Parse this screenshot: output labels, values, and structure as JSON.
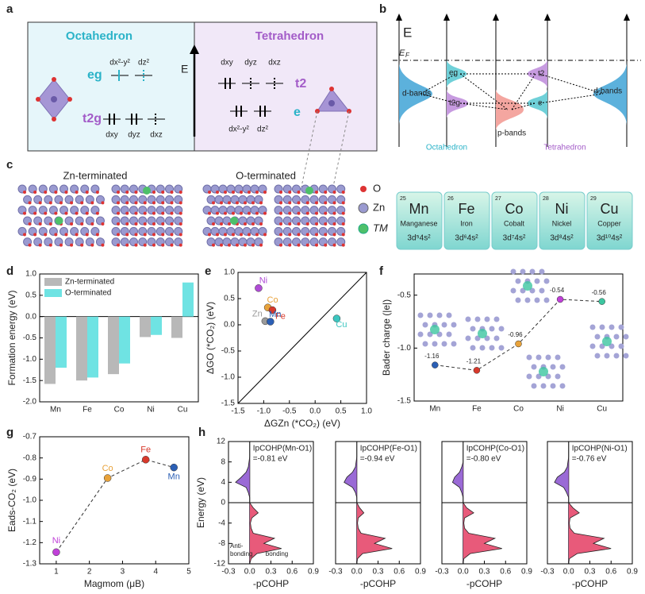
{
  "panel_labels": [
    "a",
    "b",
    "c",
    "d",
    "e",
    "f",
    "g",
    "h"
  ],
  "a": {
    "oct_title": "Octahedron",
    "tet_title": "Tetrahedron",
    "energy": "E",
    "oct_eg": "eg",
    "oct_t2g": "t2g",
    "tet_t2": "t2",
    "tet_e": "e",
    "oct_eg_orbitals": [
      "dx²-y²",
      "dz²"
    ],
    "oct_t2g_orbitals": [
      "dxy",
      "dyz",
      "dxz"
    ],
    "tet_t2_orbitals": [
      "dxy",
      "dyz",
      "dxz"
    ],
    "tet_e_orbitals": [
      "dx²-y²",
      "dz²"
    ]
  },
  "b": {
    "energy": "E",
    "fermi": "E",
    "fermi_sub": "F",
    "d_bands_left": "d-bands",
    "eg": "eg",
    "t2g": "t2g",
    "p_bands": "p-bands",
    "t2": "t2",
    "e": "e",
    "d_bands_right": "d-bands",
    "octahedron": "Octahedron",
    "tetrahedron": "Tetrahedron"
  },
  "c": {
    "zn_terminated": "Zn-terminated",
    "o_terminated": "O-terminated",
    "legend": [
      "O",
      "Zn",
      "TM"
    ],
    "elements": [
      {
        "number": "25",
        "symbol": "Mn",
        "name": "Manganese",
        "config": "3d⁵4s²"
      },
      {
        "number": "26",
        "symbol": "Fe",
        "name": "Iron",
        "config": "3d⁶4s²"
      },
      {
        "number": "27",
        "symbol": "Co",
        "name": "Cobalt",
        "config": "3d⁷4s²"
      },
      {
        "number": "28",
        "symbol": "Ni",
        "name": "Nickel",
        "config": "3d⁸4s²"
      },
      {
        "number": "29",
        "symbol": "Cu",
        "name": "Copper",
        "config": "3d¹⁰4s²"
      }
    ]
  },
  "chart_data": [
    {
      "type": "bar",
      "y_label": "Formation energy (eV)",
      "legend": "upper left",
      "categories": [
        "Mn",
        "Fe",
        "Co",
        "Ni",
        "Cu"
      ],
      "series": [
        {
          "name": "Zn-terminated",
          "color": "#b8b8b8",
          "values": [
            -1.58,
            -1.5,
            -1.35,
            -0.48,
            -0.5
          ]
        },
        {
          "name": "O-terminated",
          "color": "#6fe3e3",
          "values": [
            -1.2,
            -1.43,
            -1.1,
            -0.43,
            0.8
          ]
        }
      ],
      "ylim": [
        -2,
        1
      ],
      "yticks": [
        {
          "value": -2,
          "label": "-2.0"
        },
        -1.5,
        {
          "value": -1,
          "label": "-1.0"
        },
        -0.5,
        {
          "value": 0,
          "label": "0.0"
        },
        0.5,
        {
          "value": 1,
          "label": "1.0"
        }
      ]
    },
    {
      "type": "scatter",
      "x_label": "ΔGZn (*CO₂) (eV)",
      "y_label": "ΔGO (*CO₂) (eV)",
      "labels": [
        "Ni",
        "Co",
        "Fe",
        "Zn",
        "Mn",
        "Cu"
      ],
      "colors": [
        "#b04cd6",
        "#e8a23a",
        "#d8392b",
        "#9a9a9a",
        "#2b5fb5",
        "#3cc6c0"
      ],
      "x": [
        -1.1,
        -0.92,
        -0.83,
        -0.97,
        -0.87,
        0.42
      ],
      "y": [
        0.7,
        0.33,
        0.28,
        0.07,
        0.06,
        0.12
      ],
      "xlim": [
        -1.5,
        1
      ],
      "ylim": [
        -1.5,
        1
      ],
      "xticks": [
        -1.5,
        {
          "value": -1,
          "label": "-1.0"
        },
        -0.5,
        {
          "value": 0,
          "label": "0.0"
        },
        0.5,
        {
          "value": 1,
          "label": "1.0"
        }
      ],
      "yticks": [
        -1.5,
        {
          "value": -1,
          "label": "-1.0"
        },
        -0.5,
        {
          "value": 0,
          "label": "0.0"
        },
        0.5,
        {
          "value": 1,
          "label": "1.0"
        }
      ]
    },
    {
      "type": "line",
      "y_label": "Bader charge (|e|)",
      "categories": [
        "Mn",
        "Fe",
        "Co",
        "Ni",
        "Cu"
      ],
      "values": [
        -1.16,
        -1.21,
        -0.96,
        -0.54,
        -0.56
      ],
      "colors": [
        "#2b5fb5",
        "#d8392b",
        "#e8a23a",
        "#c040d8",
        "#3cc6a0"
      ],
      "ylim": [
        -1.5,
        -0.3
      ],
      "yticks": [
        -1.5,
        {
          "value": -1,
          "label": "-1.0"
        },
        -0.5
      ]
    },
    {
      "type": "scatter",
      "x_label": "Magmom (μB)",
      "y_label": "Eads-CO₂ (eV)",
      "labels": [
        "Ni",
        "Co",
        "Fe",
        "Mn"
      ],
      "colors": [
        "#c040d8",
        "#e8a23a",
        "#d8392b",
        "#2b5fb5"
      ],
      "x": [
        1,
        2.55,
        3.7,
        4.55
      ],
      "y": [
        -1.245,
        -0.895,
        -0.808,
        -0.845
      ],
      "xlim": [
        0.5,
        5
      ],
      "ylim": [
        -1.3,
        -0.7
      ],
      "xticks": [
        1,
        2,
        3,
        4,
        5
      ],
      "yticks": [
        -1.3,
        -1.2,
        -1.1,
        {
          "value": -1,
          "label": "-1.0"
        },
        -0.9,
        -0.8,
        -0.7
      ]
    },
    {
      "type": "cohp",
      "title": "IpCOHP(Mn-O1)",
      "annotation": "=-0.81 eV",
      "x_label": "-pCOHP",
      "y_label": "Energy (eV)",
      "notes": [
        "Anti-",
        "bonding",
        "bonding"
      ],
      "energy": [
        -12,
        -11,
        -10,
        -9,
        -8,
        -7,
        -6,
        -5,
        -4,
        -3,
        -2,
        -1,
        0,
        1,
        2,
        3,
        4,
        5,
        6,
        7,
        8,
        9,
        10,
        11,
        12
      ],
      "values": [
        0,
        0.02,
        0.1,
        0.45,
        0.2,
        0.35,
        0.05,
        0.02,
        0.01,
        0.03,
        0.12,
        0.05,
        0,
        0,
        -0.02,
        -0.05,
        -0.2,
        -0.12,
        -0.05,
        -0.02,
        -0.01,
        0,
        0,
        0,
        0
      ],
      "xlim": [
        -0.3,
        0.9
      ],
      "ylim": [
        -12,
        12
      ],
      "xticks": [
        -0.3,
        {
          "value": 0,
          "label": "0.0"
        },
        0.3,
        0.6,
        0.9
      ],
      "yticks": [
        -12,
        -8,
        -4,
        0,
        4,
        8,
        12
      ]
    },
    {
      "type": "cohp",
      "title": "IpCOHP(Fe-O1)",
      "annotation": "=-0.94 eV",
      "x_label": "-pCOHP",
      "energy": [
        -12,
        -11,
        -10,
        -9,
        -8,
        -7,
        -6,
        -5,
        -4,
        -3,
        -2,
        -1,
        0,
        1,
        2,
        3,
        4,
        5,
        6,
        7,
        8,
        9,
        10,
        11,
        12
      ],
      "values": [
        0,
        0.01,
        0.08,
        0.5,
        0.25,
        0.4,
        0.06,
        0.02,
        0.01,
        0.02,
        0.1,
        0.04,
        0,
        0,
        -0.02,
        -0.06,
        -0.18,
        -0.14,
        -0.06,
        -0.02,
        -0.01,
        0,
        0,
        0,
        0
      ],
      "xlim": [
        -0.3,
        0.9
      ],
      "ylim": [
        -12,
        12
      ],
      "xticks": [
        -0.3,
        {
          "value": 0,
          "label": "0.0"
        },
        0.3,
        0.6,
        0.9
      ]
    },
    {
      "type": "cohp",
      "title": "IpCOHP(Co-O1)",
      "annotation": "=-0.80 eV",
      "x_label": "-pCOHP",
      "energy": [
        -12,
        -11,
        -10,
        -9,
        -8,
        -7,
        -6,
        -5,
        -4,
        -3,
        -2,
        -1,
        0,
        1,
        2,
        3,
        4,
        5,
        6,
        7,
        8,
        9,
        10,
        11,
        12
      ],
      "values": [
        0,
        0.01,
        0.1,
        0.55,
        0.3,
        0.45,
        0.08,
        0.02,
        0.01,
        0.02,
        0.15,
        0.05,
        0,
        0,
        -0.02,
        -0.05,
        -0.15,
        -0.12,
        -0.05,
        -0.02,
        0,
        0,
        0,
        0,
        0
      ],
      "xlim": [
        -0.3,
        0.9
      ],
      "ylim": [
        -12,
        12
      ],
      "xticks": [
        -0.3,
        {
          "value": 0,
          "label": "0.0"
        },
        0.3,
        0.6,
        0.9
      ]
    },
    {
      "type": "cohp",
      "title": "IpCOHP(Ni-O1)",
      "annotation": "=-0.76 eV",
      "x_label": "-pCOHP",
      "energy": [
        -12,
        -11,
        -10,
        -9,
        -8,
        -7,
        -6,
        -5,
        -4,
        -3,
        -2,
        -1,
        0,
        1,
        2,
        3,
        4,
        5,
        6,
        7,
        8,
        9,
        10,
        11,
        12
      ],
      "values": [
        0,
        0.01,
        0.12,
        0.6,
        0.35,
        0.5,
        0.08,
        0.02,
        0.01,
        0.02,
        0.15,
        0.06,
        0,
        0,
        -0.03,
        -0.07,
        -0.2,
        -0.16,
        -0.06,
        -0.02,
        -0.01,
        0,
        0,
        0,
        0
      ],
      "xlim": [
        -0.3,
        0.9
      ],
      "ylim": [
        -12,
        12
      ],
      "xticks": [
        -0.3,
        {
          "value": 0,
          "label": "0.0"
        },
        0.3,
        0.6,
        0.9
      ]
    }
  ]
}
